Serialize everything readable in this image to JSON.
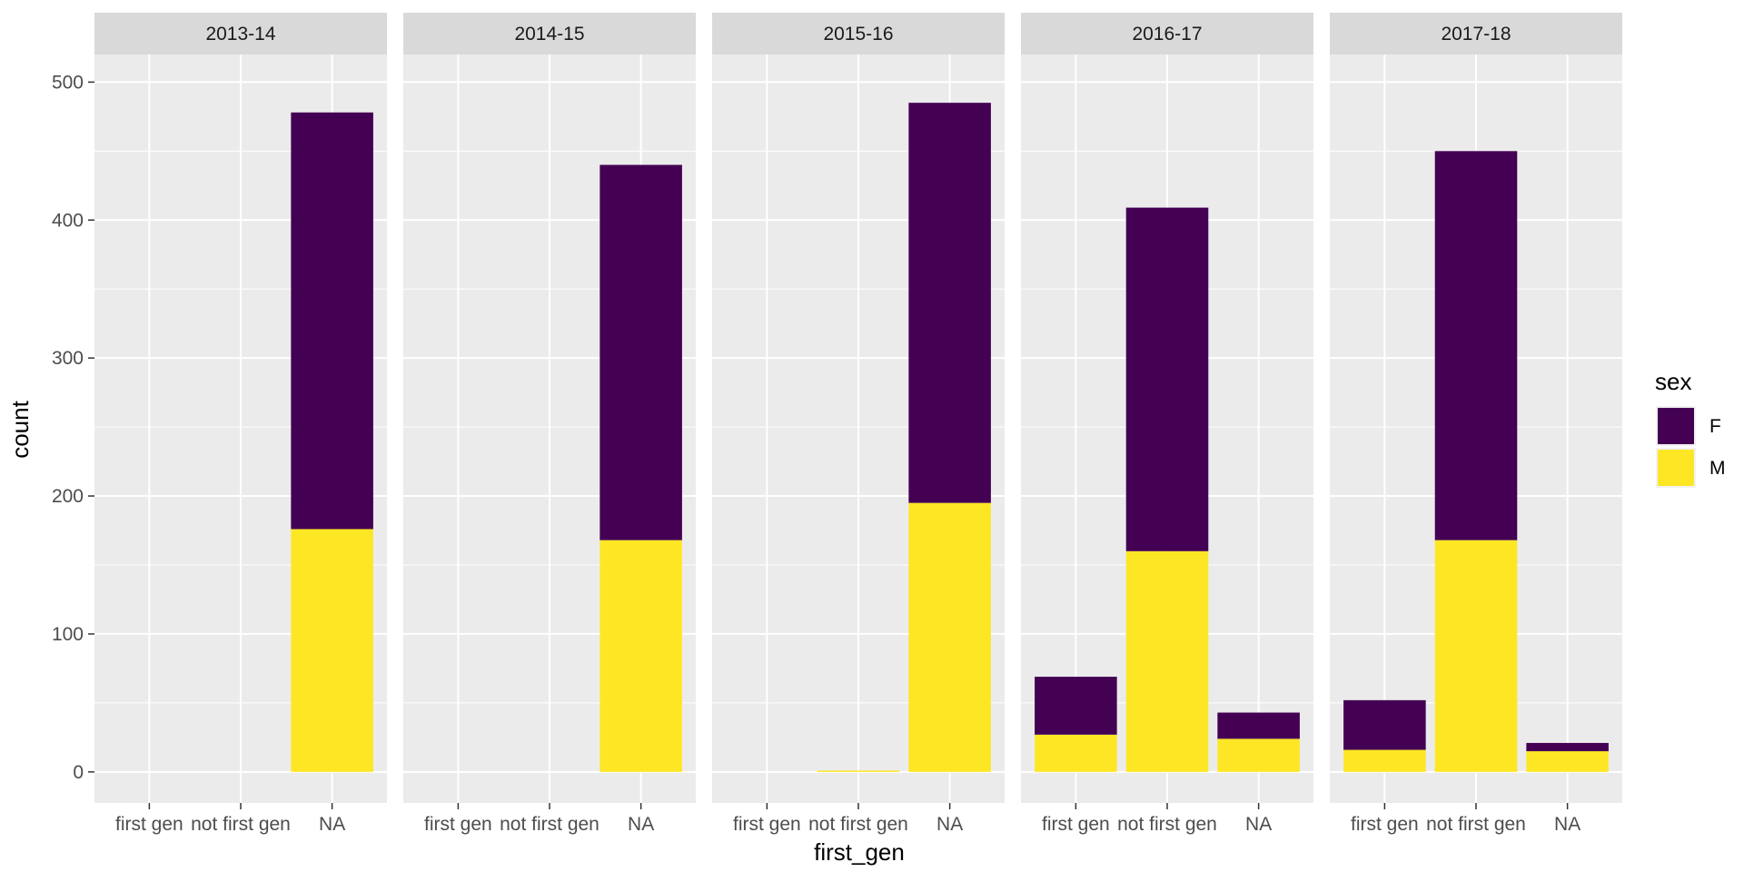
{
  "chart_data": {
    "type": "bar",
    "stacked": true,
    "facet_by": "year",
    "facets": [
      {
        "label": "2013-14",
        "values": {
          "F": [
            0,
            0,
            302
          ],
          "M": [
            0,
            0,
            176
          ]
        }
      },
      {
        "label": "2014-15",
        "values": {
          "F": [
            0,
            0,
            272
          ],
          "M": [
            0,
            0,
            168
          ]
        }
      },
      {
        "label": "2015-16",
        "values": {
          "F": [
            0,
            0,
            290
          ],
          "M": [
            0,
            1,
            195
          ]
        }
      },
      {
        "label": "2016-17",
        "values": {
          "F": [
            42,
            249,
            19
          ],
          "M": [
            27,
            160,
            24
          ]
        }
      },
      {
        "label": "2017-18",
        "values": {
          "F": [
            36,
            282,
            6
          ],
          "M": [
            16,
            168,
            15
          ]
        }
      }
    ],
    "categories": [
      "first gen",
      "not first gen",
      "NA"
    ],
    "series": [
      {
        "name": "F",
        "color": "#440154"
      },
      {
        "name": "M",
        "color": "#FDE725"
      }
    ],
    "xlabel": "first_gen",
    "ylabel": "count",
    "yticks": [
      0,
      100,
      200,
      300,
      400,
      500
    ],
    "ylim": [
      -22.5,
      520
    ],
    "legend": {
      "title": "sex",
      "position": "right"
    },
    "grid": true,
    "panel_background": "#EBEBEB",
    "strip_background": "#D9D9D9"
  }
}
